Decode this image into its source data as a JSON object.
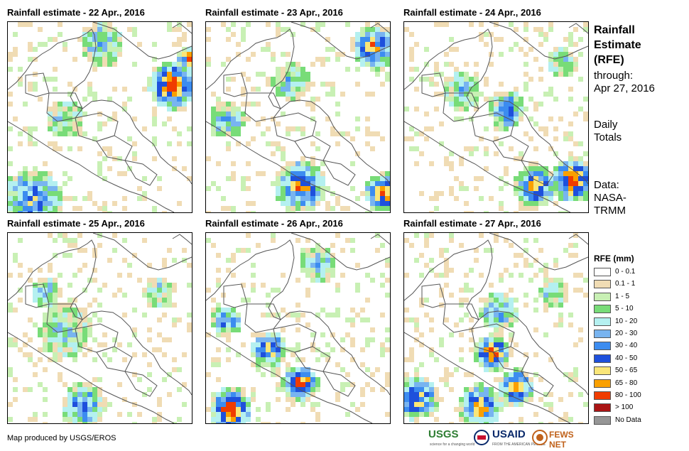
{
  "panels": [
    {
      "title": "Rainfall estimate - 22 Apr., 2016"
    },
    {
      "title": "Rainfall estimate - 23 Apr., 2016"
    },
    {
      "title": "Rainfall estimate - 24 Apr., 2016"
    },
    {
      "title": "Rainfall estimate - 25 Apr., 2016"
    },
    {
      "title": "Rainfall estimate - 26 Apr., 2016"
    },
    {
      "title": "Rainfall estimate - 27 Apr., 2016"
    }
  ],
  "side": {
    "title_line1": "Rainfall",
    "title_line2": "Estimate",
    "title_line3": "(RFE)",
    "through_line1": "through:",
    "through_line2": "Apr 27, 2016",
    "totals_line1": "Daily",
    "totals_line2": "Totals",
    "data_line1": "Data:",
    "data_line2": "NASA-",
    "data_line3": "TRMM"
  },
  "legend": {
    "title": "RFE (mm)",
    "items": [
      {
        "label": "0 - 0.1",
        "color": "#ffffff"
      },
      {
        "label": "0.1 - 1",
        "color": "#f0dcb4"
      },
      {
        "label": "1 - 5",
        "color": "#c8f0b4"
      },
      {
        "label": "5 - 10",
        "color": "#78dc78"
      },
      {
        "label": "10 - 20",
        "color": "#b4f0f0"
      },
      {
        "label": "20 - 30",
        "color": "#78b4f0"
      },
      {
        "label": "30 - 40",
        "color": "#3c8cf0"
      },
      {
        "label": "40 - 50",
        "color": "#1e50dc"
      },
      {
        "label": "50 - 65",
        "color": "#fae678"
      },
      {
        "label": "65 - 80",
        "color": "#faa000"
      },
      {
        "label": "80 - 100",
        "color": "#f03c00"
      },
      {
        "label": "> 100",
        "color": "#aa1414"
      },
      {
        "label": "No Data",
        "color": "#969696"
      }
    ]
  },
  "footer": {
    "credit": "Map produced by USGS/EROS",
    "logo_usgs": "USGS",
    "logo_usgs_sub": "science for a changing world",
    "logo_usaid": "USAID",
    "logo_usaid_sub": "FROM THE AMERICAN PEOPLE",
    "logo_fews": "FEWS NET"
  },
  "colors": {
    "outline": "#555555",
    "usgs_green": "#2e7d32",
    "usaid_blue": "#0a2a6b",
    "usaid_red": "#c8102e",
    "fews_orange": "#c0621b"
  }
}
